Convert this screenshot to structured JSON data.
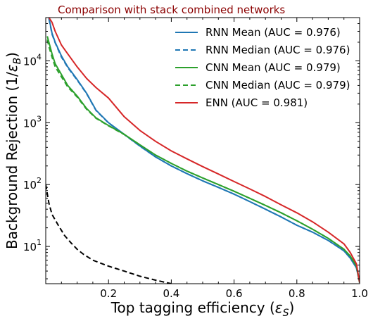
{
  "chart_data": {
    "type": "line",
    "title": "Comparison with stack combined networks",
    "title_color": "#8b0000",
    "xlabel_text": "Top tagging efficiency (",
    "xlabel_symbol": "ε",
    "xlabel_sub": "S",
    "xlabel_close": ")",
    "ylabel_text": "Background Rejection (1/",
    "ylabel_symbol": "ε",
    "ylabel_sub": "B",
    "ylabel_close": ")",
    "xlim": [
      0.0,
      1.0
    ],
    "ylim": [
      2.5,
      50000
    ],
    "yscale": "log",
    "x_ticks": [
      {
        "value": 0.2,
        "label": "0.2"
      },
      {
        "value": 0.4,
        "label": "0.4"
      },
      {
        "value": 0.6,
        "label": "0.6"
      },
      {
        "value": 0.8,
        "label": "0.8"
      },
      {
        "value": 1.0,
        "label": "1.0"
      }
    ],
    "y_ticks": [
      {
        "value": 10,
        "base": "10",
        "exp": "1"
      },
      {
        "value": 100,
        "base": "10",
        "exp": "2"
      },
      {
        "value": 1000,
        "base": "10",
        "exp": "3"
      },
      {
        "value": 10000,
        "base": "10",
        "exp": "4"
      }
    ],
    "legend_position": "upper-right",
    "series": [
      {
        "name": "RNN Mean (AUC = 0.976)",
        "color": "#1f77b4",
        "dash": "solid",
        "x": [
          0.01,
          0.02,
          0.03,
          0.05,
          0.07,
          0.1,
          0.13,
          0.16,
          0.2,
          0.25,
          0.3,
          0.35,
          0.4,
          0.45,
          0.5,
          0.55,
          0.6,
          0.65,
          0.7,
          0.75,
          0.8,
          0.85,
          0.9,
          0.95,
          0.97,
          0.99,
          1.0
        ],
        "y": [
          50000,
          28000,
          20000,
          12000,
          8000,
          5000,
          3000,
          1600,
          1000,
          650,
          420,
          280,
          200,
          150,
          115,
          90,
          70,
          53,
          40,
          30,
          22,
          17,
          12.5,
          8.5,
          6.5,
          4.5,
          2.6
        ]
      },
      {
        "name": "RNN Median (AUC = 0.976)",
        "color": "#1f77b4",
        "dash": "dashed",
        "x": [
          0.01,
          0.02,
          0.03,
          0.05,
          0.07,
          0.1,
          0.13,
          0.16,
          0.2,
          0.25,
          0.3,
          0.35,
          0.4,
          0.45,
          0.5,
          0.55,
          0.6,
          0.65,
          0.7,
          0.75,
          0.8,
          0.85,
          0.9,
          0.95,
          0.97,
          0.99,
          1.0
        ],
        "y": [
          48000,
          27000,
          19500,
          11500,
          7800,
          4900,
          2950,
          1580,
          990,
          645,
          418,
          279,
          200,
          150,
          115,
          90,
          70,
          53,
          40,
          30,
          22,
          17,
          12.5,
          8.5,
          6.5,
          4.5,
          2.6
        ]
      },
      {
        "name": "CNN Mean (AUC = 0.979)",
        "color": "#2ca02c",
        "dash": "solid",
        "x": [
          0.005,
          0.01,
          0.02,
          0.03,
          0.05,
          0.07,
          0.1,
          0.13,
          0.16,
          0.2,
          0.25,
          0.3,
          0.35,
          0.4,
          0.45,
          0.5,
          0.55,
          0.6,
          0.65,
          0.7,
          0.75,
          0.8,
          0.85,
          0.9,
          0.95,
          0.97,
          0.99,
          1.0
        ],
        "y": [
          25000,
          20000,
          13000,
          9000,
          6000,
          4000,
          2700,
          1700,
          1200,
          900,
          650,
          440,
          300,
          220,
          165,
          128,
          100,
          78,
          60,
          46,
          35,
          26,
          19,
          13.5,
          9,
          7,
          4.8,
          2.6
        ]
      },
      {
        "name": "CNN Median (AUC = 0.979)",
        "color": "#2ca02c",
        "dash": "dashed",
        "x": [
          0.005,
          0.01,
          0.02,
          0.03,
          0.05,
          0.07,
          0.1,
          0.13,
          0.16,
          0.2,
          0.25,
          0.3,
          0.35,
          0.4,
          0.45,
          0.5,
          0.55,
          0.6,
          0.65,
          0.7,
          0.75,
          0.8,
          0.85,
          0.9,
          0.95,
          0.97,
          0.99,
          1.0
        ],
        "y": [
          22000,
          17000,
          11500,
          8000,
          5500,
          3800,
          2600,
          1650,
          1180,
          890,
          645,
          438,
          299,
          220,
          165,
          128,
          100,
          78,
          60,
          46,
          35,
          26,
          19,
          13.5,
          9,
          7,
          4.8,
          2.6
        ]
      },
      {
        "name": "ENN (AUC = 0.981)",
        "color": "#d62728",
        "dash": "solid",
        "x": [
          0.01,
          0.02,
          0.03,
          0.05,
          0.07,
          0.1,
          0.13,
          0.16,
          0.2,
          0.25,
          0.3,
          0.35,
          0.4,
          0.45,
          0.5,
          0.55,
          0.6,
          0.65,
          0.7,
          0.75,
          0.8,
          0.85,
          0.9,
          0.95,
          0.97,
          0.99,
          1.0
        ],
        "y": [
          50000,
          42000,
          30000,
          18000,
          13000,
          8000,
          5200,
          3700,
          2500,
          1250,
          750,
          500,
          350,
          260,
          195,
          148,
          112,
          85,
          64,
          47,
          35,
          25,
          17,
          11,
          8,
          5.2,
          2.6
        ]
      },
      {
        "name": "",
        "color": "#000000",
        "dash": "dashed",
        "x": [
          0.0,
          0.01,
          0.02,
          0.04,
          0.06,
          0.08,
          0.1,
          0.12,
          0.15,
          0.2,
          0.25,
          0.3,
          0.35,
          0.4
        ],
        "y": [
          100,
          50,
          33,
          22,
          15,
          11.5,
          9,
          7.5,
          6,
          4.8,
          4,
          3.3,
          2.85,
          2.5
        ]
      }
    ]
  }
}
